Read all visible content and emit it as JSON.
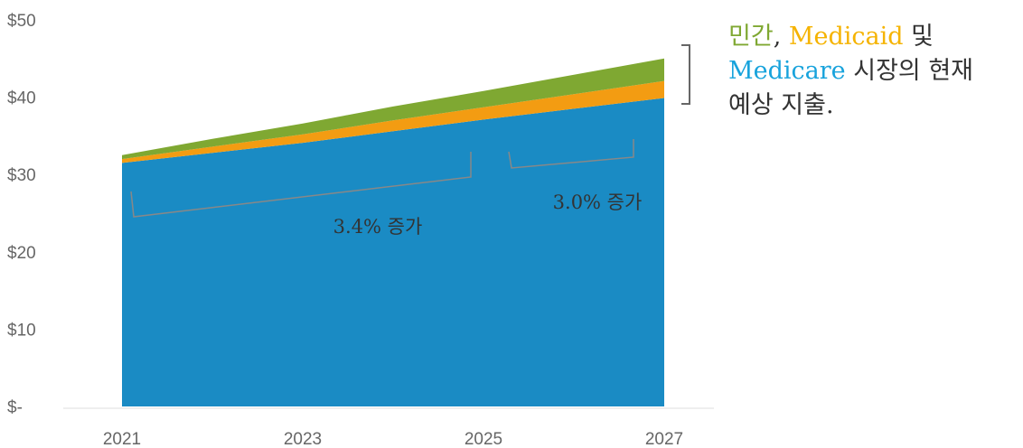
{
  "chart_data": {
    "type": "area",
    "title": "",
    "xlabel": "",
    "ylabel": "",
    "x": [
      2021,
      2022,
      2023,
      2024,
      2025,
      2026,
      2027
    ],
    "x_ticks": [
      "2021",
      "2023",
      "2025",
      "2027"
    ],
    "y_ticks": [
      "$50",
      "$40",
      "$30",
      "$20",
      "$10",
      "$-"
    ],
    "ylim": [
      0,
      50
    ],
    "stacked": true,
    "grid": false,
    "series": [
      {
        "name": "Medicare",
        "color": "#1a8bc4",
        "values": [
          31.5,
          32.8,
          34.1,
          35.6,
          37.1,
          38.5,
          39.9
        ]
      },
      {
        "name": "Medicaid",
        "color": "#f39c12",
        "values": [
          0.5,
          0.8,
          1.1,
          1.4,
          1.6,
          1.9,
          2.2
        ]
      },
      {
        "name": "민간",
        "color": "#7fa832",
        "values": [
          0.5,
          1.0,
          1.4,
          1.8,
          2.1,
          2.5,
          2.9
        ]
      }
    ],
    "annotations": [
      {
        "text": "3.4% 증가",
        "from": 2021,
        "to": 2025
      },
      {
        "text": "3.0% 증가",
        "from": 2025.2,
        "to": 2027
      }
    ]
  },
  "legend": {
    "private": "민간",
    "sep1": ", ",
    "medicaid": "Medicaid",
    "connector": " 및",
    "medicare": "Medicare",
    "rest1": " 시장의 현재",
    "rest2": "예상 지출."
  },
  "colors": {
    "private": "#7fa832",
    "medicaid": "#f5b301",
    "medicare": "#18a3dc"
  }
}
